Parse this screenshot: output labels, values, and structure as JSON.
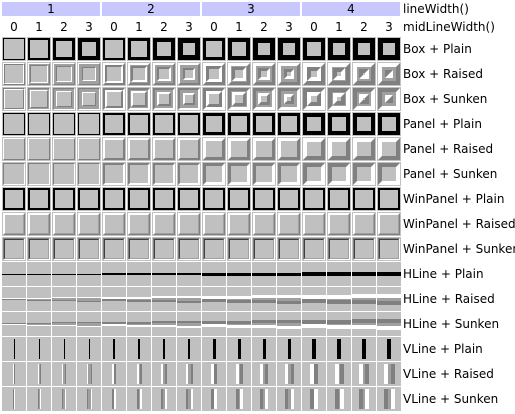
{
  "header": {
    "line_width_label": "lineWidth()",
    "mid_line_width_label": "midLineWidth()",
    "line_widths": [
      "1",
      "2",
      "3",
      "4"
    ],
    "mid_line_widths": [
      "0",
      "1",
      "2",
      "3"
    ]
  },
  "rows": [
    {
      "label": "Box + Plain",
      "shape": "box",
      "shadow": "plain"
    },
    {
      "label": "Box + Raised",
      "shape": "box",
      "shadow": "raised"
    },
    {
      "label": "Box + Sunken",
      "shape": "box",
      "shadow": "sunken"
    },
    {
      "label": "Panel + Plain",
      "shape": "panel",
      "shadow": "plain"
    },
    {
      "label": "Panel + Raised",
      "shape": "panel",
      "shadow": "raised"
    },
    {
      "label": "Panel + Sunken",
      "shape": "panel",
      "shadow": "sunken"
    },
    {
      "label": "WinPanel + Plain",
      "shape": "winpanel",
      "shadow": "plain"
    },
    {
      "label": "WinPanel + Raised",
      "shape": "winpanel",
      "shadow": "raised"
    },
    {
      "label": "WinPanel + Sunken",
      "shape": "winpanel",
      "shadow": "sunken"
    },
    {
      "label": "HLine + Plain",
      "shape": "hline",
      "shadow": "plain"
    },
    {
      "label": "HLine + Raised",
      "shape": "hline",
      "shadow": "raised"
    },
    {
      "label": "HLine + Sunken",
      "shape": "hline",
      "shadow": "sunken"
    },
    {
      "label": "VLine + Plain",
      "shape": "vline",
      "shadow": "plain"
    },
    {
      "label": "VLine + Raised",
      "shape": "vline",
      "shadow": "raised"
    },
    {
      "label": "VLine + Sunken",
      "shape": "vline",
      "shadow": "sunken"
    }
  ],
  "colors": {
    "header_bg": "#c8c8ff",
    "cell_bg": "#c0c0c0",
    "light": "#ffffff",
    "mid": "#a0a0a0",
    "dark": "#808080",
    "plain": "#000000"
  }
}
